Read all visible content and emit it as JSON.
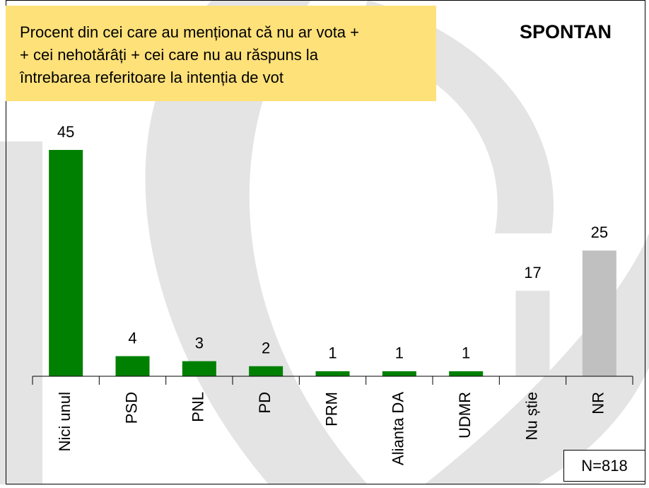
{
  "chart_data": {
    "type": "bar",
    "annotation_lines": [
      "Procent din cei care au menționat că nu ar vota +",
      "+ cei nehotărâți + cei care nu au răspuns la",
      "întrebarea referitoare la intenția de vot"
    ],
    "title": "SPONTAN",
    "note": "N=818",
    "categories": [
      "Nici unul",
      "PSD",
      "PNL",
      "PD",
      "PRM",
      "Alianta DA",
      "UDMR",
      "Nu știe",
      "NR"
    ],
    "values": [
      45,
      4,
      3,
      2,
      1,
      1,
      1,
      17,
      25
    ],
    "colors": [
      "#008000",
      "#008000",
      "#008000",
      "#008000",
      "#008000",
      "#008000",
      "#008000",
      "#e3e3e3",
      "#c0c0c0"
    ]
  }
}
